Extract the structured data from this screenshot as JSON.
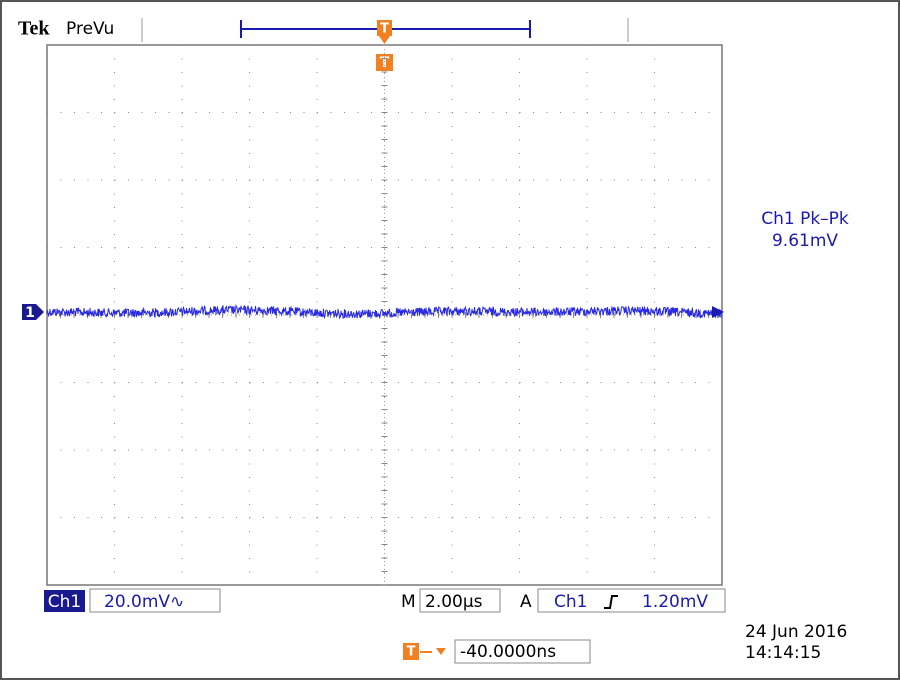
{
  "header": {
    "brand": "Tek",
    "mode": "PreVu"
  },
  "measurement": {
    "label": "Ch1 Pk–Pk",
    "value": "9.61mV"
  },
  "channel_marker": "1",
  "trigger_marker": "T",
  "status": {
    "channel": "Ch1",
    "scale": "20.0mV∿",
    "time_label": "M",
    "time_scale": "2.00µs",
    "trigger_label": "A",
    "trigger_source": "Ch1",
    "trigger_level": "1.20mV",
    "trigger_position": "-40.0000ns"
  },
  "timestamp": {
    "date": "24 Jun 2016",
    "time": "14:14:15"
  }
}
